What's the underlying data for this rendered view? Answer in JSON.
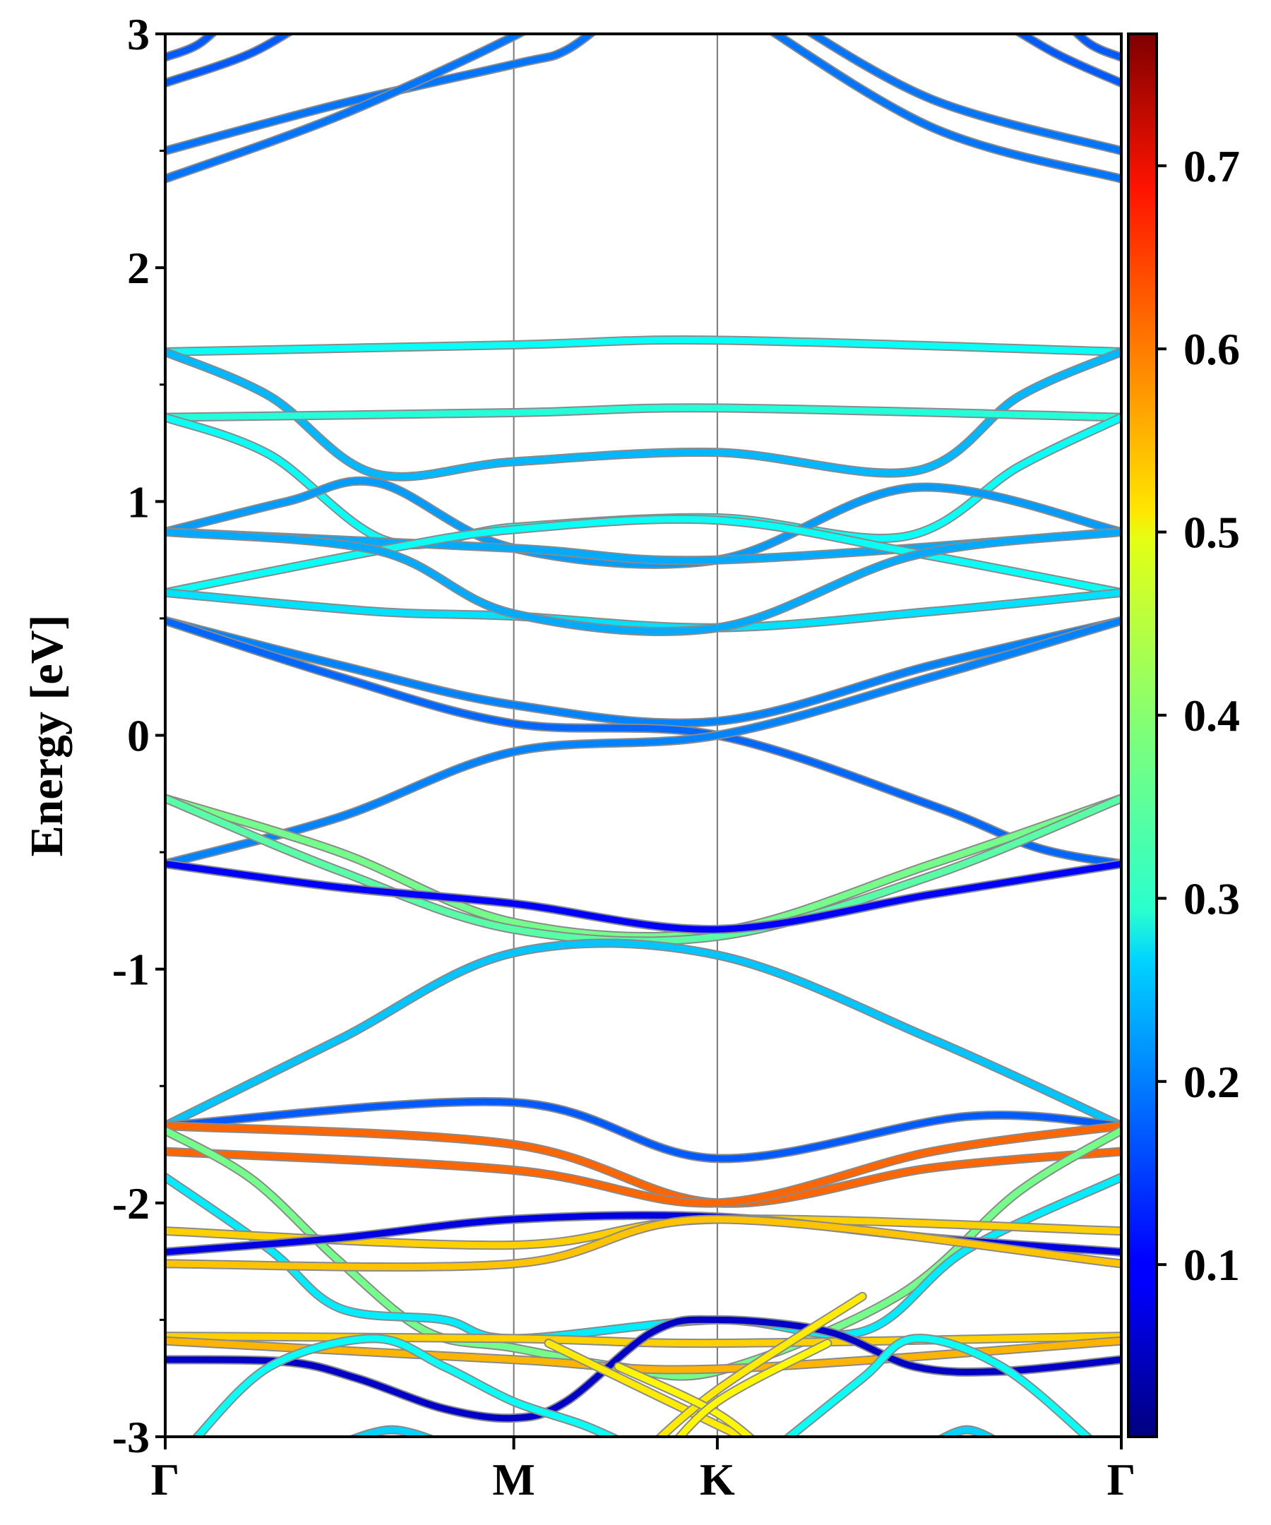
{
  "chart_data": {
    "type": "line",
    "title": "",
    "xlabel": "",
    "ylabel": "Energy [eV]",
    "ylim": [
      -3,
      3
    ],
    "yticks": [
      "3",
      "2",
      "1",
      "0",
      "-1",
      "-2",
      "-3"
    ],
    "ytick_values": [
      3,
      2,
      1,
      0,
      -1,
      -2,
      -3
    ],
    "xticks": [
      {
        "label": "Γ",
        "k": 0
      },
      {
        "label": "M",
        "k": 1
      },
      {
        "label": "K",
        "k": 1.584
      },
      {
        "label": "Γ",
        "k": 2.743
      }
    ],
    "xlim": [
      0,
      2.743
    ],
    "colorbar": {
      "range": [
        0.006,
        0.772
      ],
      "ticks": [
        "0.1",
        "0.2",
        "0.3",
        "0.4",
        "0.5",
        "0.6",
        "0.7"
      ],
      "tick_values": [
        0.1,
        0.2,
        0.3,
        0.4,
        0.5,
        0.6,
        0.7
      ],
      "colormap": "jet"
    },
    "bands": [
      {
        "w": 0.17,
        "pts": [
          [
            0,
            2.9
          ],
          [
            0.1,
            2.96
          ],
          [
            0.2,
            3.1
          ]
        ]
      },
      {
        "w": 0.17,
        "pts": [
          [
            2.55,
            3.1
          ],
          [
            2.65,
            2.96
          ],
          [
            2.743,
            2.9
          ]
        ]
      },
      {
        "w": 0.17,
        "pts": [
          [
            0,
            2.79
          ],
          [
            0.25,
            2.92
          ],
          [
            0.45,
            3.1
          ]
        ]
      },
      {
        "w": 0.17,
        "pts": [
          [
            2.35,
            3.1
          ],
          [
            2.55,
            2.92
          ],
          [
            2.743,
            2.79
          ]
        ]
      },
      {
        "w": 0.19,
        "pts": [
          [
            0,
            2.5
          ],
          [
            0.5,
            2.7
          ],
          [
            1,
            2.87
          ],
          [
            1.15,
            2.93
          ],
          [
            1.3,
            3.1
          ]
        ]
      },
      {
        "w": 0.19,
        "pts": [
          [
            1.75,
            3.1
          ],
          [
            2.2,
            2.72
          ],
          [
            2.743,
            2.5
          ]
        ]
      },
      {
        "w": 0.19,
        "pts": [
          [
            0,
            2.38
          ],
          [
            0.5,
            2.65
          ],
          [
            1,
            2.99
          ],
          [
            1.1,
            3.1
          ]
        ]
      },
      {
        "w": 0.19,
        "pts": [
          [
            1.65,
            3.1
          ],
          [
            2.2,
            2.6
          ],
          [
            2.743,
            2.38
          ]
        ]
      },
      {
        "w": 0.3,
        "pts": [
          [
            0,
            1.64
          ],
          [
            1,
            1.67
          ],
          [
            1.584,
            1.69
          ],
          [
            2.743,
            1.64
          ]
        ]
      },
      {
        "w": 0.24,
        "pts": [
          [
            0,
            1.64
          ],
          [
            0.3,
            1.45
          ],
          [
            0.6,
            1.12
          ],
          [
            1,
            1.17
          ],
          [
            1.584,
            1.21
          ],
          [
            2.15,
            1.13
          ],
          [
            2.45,
            1.45
          ],
          [
            2.743,
            1.64
          ]
        ]
      },
      {
        "w": 0.32,
        "pts": [
          [
            0,
            1.36
          ],
          [
            1,
            1.38
          ],
          [
            1.584,
            1.4
          ],
          [
            2.743,
            1.36
          ]
        ]
      },
      {
        "w": 0.3,
        "pts": [
          [
            0,
            1.36
          ],
          [
            0.3,
            1.2
          ],
          [
            0.64,
            0.83
          ],
          [
            1,
            0.89
          ],
          [
            1.584,
            0.93
          ],
          [
            2.12,
            0.85
          ],
          [
            2.45,
            1.15
          ],
          [
            2.743,
            1.36
          ]
        ]
      },
      {
        "w": 0.22,
        "pts": [
          [
            0,
            0.87
          ],
          [
            0.35,
            1.0
          ],
          [
            0.61,
            1.08
          ],
          [
            1,
            0.8
          ],
          [
            1.584,
            0.75
          ],
          [
            2.15,
            1.06
          ],
          [
            2.743,
            0.87
          ]
        ]
      },
      {
        "w": 0.23,
        "pts": [
          [
            0,
            0.87
          ],
          [
            1,
            0.8
          ],
          [
            1.584,
            0.75
          ],
          [
            2.743,
            0.87
          ]
        ]
      },
      {
        "w": 0.3,
        "pts": [
          [
            0,
            0.61
          ],
          [
            0.61,
            0.79
          ],
          [
            1,
            0.88
          ],
          [
            1.584,
            0.92
          ],
          [
            2.15,
            0.78
          ],
          [
            2.743,
            0.61
          ]
        ]
      },
      {
        "w": 0.27,
        "pts": [
          [
            0,
            0.61
          ],
          [
            0.6,
            0.53
          ],
          [
            1,
            0.51
          ],
          [
            1.584,
            0.46
          ],
          [
            2.2,
            0.53
          ],
          [
            2.743,
            0.61
          ]
        ]
      },
      {
        "w": 0.23,
        "pts": [
          [
            0,
            0.87
          ],
          [
            0.61,
            0.79
          ],
          [
            1,
            0.52
          ],
          [
            1.584,
            0.46
          ],
          [
            2.15,
            0.77
          ],
          [
            2.743,
            0.87
          ]
        ]
      },
      {
        "w": 0.2,
        "pts": [
          [
            0,
            0.49
          ],
          [
            0.5,
            0.3
          ],
          [
            1,
            0.13
          ],
          [
            1.584,
            0.06
          ],
          [
            2.2,
            0.3
          ],
          [
            2.743,
            0.49
          ]
        ]
      },
      {
        "w": 0.18,
        "pts": [
          [
            0,
            0.49
          ],
          [
            0.5,
            0.25
          ],
          [
            1,
            0.05
          ],
          [
            1.584,
            0.0
          ],
          [
            2.2,
            -0.3
          ],
          [
            2.5,
            -0.48
          ],
          [
            2.743,
            -0.55
          ]
        ]
      },
      {
        "w": 0.2,
        "pts": [
          [
            0,
            -0.55
          ],
          [
            0.5,
            -0.35
          ],
          [
            1,
            -0.07
          ],
          [
            1.584,
            0.0
          ],
          [
            2.2,
            0.25
          ],
          [
            2.743,
            0.49
          ]
        ]
      },
      {
        "w": 0.38,
        "pts": [
          [
            0,
            -0.27
          ],
          [
            0.5,
            -0.5
          ],
          [
            1,
            -0.8
          ],
          [
            1.584,
            -0.84
          ],
          [
            2.2,
            -0.55
          ],
          [
            2.743,
            -0.27
          ]
        ]
      },
      {
        "w": 0.36,
        "pts": [
          [
            0,
            -0.27
          ],
          [
            0.5,
            -0.58
          ],
          [
            1,
            -0.83
          ],
          [
            1.584,
            -0.86
          ],
          [
            2.2,
            -0.6
          ],
          [
            2.743,
            -0.27
          ]
        ]
      },
      {
        "w": 0.1,
        "pts": [
          [
            0,
            -0.55
          ],
          [
            0.5,
            -0.65
          ],
          [
            1,
            -0.72
          ],
          [
            1.584,
            -0.83
          ],
          [
            2.2,
            -0.68
          ],
          [
            2.743,
            -0.55
          ]
        ]
      },
      {
        "w": 0.25,
        "pts": [
          [
            0,
            -1.67
          ],
          [
            0.5,
            -1.3
          ],
          [
            1,
            -0.93
          ],
          [
            1.584,
            -0.94
          ],
          [
            2.2,
            -1.3
          ],
          [
            2.743,
            -1.67
          ]
        ]
      },
      {
        "w": 0.17,
        "pts": [
          [
            0,
            -1.67
          ],
          [
            1,
            -1.57
          ],
          [
            1.584,
            -1.81
          ],
          [
            2.3,
            -1.63
          ],
          [
            2.743,
            -1.67
          ]
        ]
      },
      {
        "w": 0.6,
        "pts": [
          [
            0,
            -1.67
          ],
          [
            1,
            -1.75
          ],
          [
            1.584,
            -2.0
          ],
          [
            2.2,
            -1.85
          ],
          [
            2.743,
            -1.78
          ]
        ]
      },
      {
        "w": 0.6,
        "pts": [
          [
            0,
            -1.78
          ],
          [
            1,
            -1.86
          ],
          [
            1.584,
            -2.0
          ],
          [
            2.2,
            -1.78
          ],
          [
            2.743,
            -1.67
          ]
        ]
      },
      {
        "w": 0.38,
        "pts": [
          [
            0,
            -1.69
          ],
          [
            0.25,
            -1.9
          ],
          [
            0.5,
            -2.25
          ],
          [
            0.75,
            -2.55
          ],
          [
            1,
            -2.62
          ],
          [
            1.3,
            -2.7
          ],
          [
            1.584,
            -2.72
          ],
          [
            2.1,
            -2.4
          ],
          [
            2.45,
            -1.95
          ],
          [
            2.743,
            -1.69
          ]
        ]
      },
      {
        "w": 0.28,
        "pts": [
          [
            0,
            -1.89
          ],
          [
            0.3,
            -2.2
          ],
          [
            0.5,
            -2.45
          ],
          [
            0.8,
            -2.5
          ],
          [
            1,
            -2.58
          ],
          [
            1.584,
            -2.5
          ],
          [
            2.0,
            -2.55
          ],
          [
            2.3,
            -2.2
          ],
          [
            2.743,
            -1.89
          ]
        ]
      },
      {
        "w": 0.52,
        "pts": [
          [
            0,
            -2.12
          ],
          [
            1,
            -2.18
          ],
          [
            1.584,
            -2.07
          ],
          [
            2.743,
            -2.12
          ]
        ]
      },
      {
        "w": 0.08,
        "pts": [
          [
            0,
            -2.21
          ],
          [
            0.5,
            -2.15
          ],
          [
            1,
            -2.07
          ],
          [
            1.584,
            -2.06
          ],
          [
            2.2,
            -2.15
          ],
          [
            2.743,
            -2.21
          ]
        ]
      },
      {
        "w": 0.53,
        "pts": [
          [
            0,
            -2.26
          ],
          [
            1,
            -2.26
          ],
          [
            1.584,
            -2.07
          ],
          [
            2.743,
            -2.26
          ]
        ]
      },
      {
        "w": 0.52,
        "pts": [
          [
            0,
            -2.57
          ],
          [
            1,
            -2.58
          ],
          [
            1.584,
            -2.6
          ],
          [
            2.743,
            -2.57
          ]
        ]
      },
      {
        "w": 0.54,
        "pts": [
          [
            0,
            -2.59
          ],
          [
            1,
            -2.67
          ],
          [
            1.584,
            -2.71
          ],
          [
            2.743,
            -2.59
          ]
        ]
      },
      {
        "w": 0.06,
        "pts": [
          [
            0,
            -2.67
          ],
          [
            0.35,
            -2.68
          ],
          [
            0.55,
            -2.75
          ],
          [
            0.8,
            -2.88
          ],
          [
            1,
            -2.92
          ],
          [
            1.15,
            -2.85
          ],
          [
            1.4,
            -2.55
          ],
          [
            1.584,
            -2.5
          ],
          [
            1.9,
            -2.55
          ],
          [
            2.15,
            -2.7
          ],
          [
            2.4,
            -2.72
          ],
          [
            2.743,
            -2.67
          ]
        ]
      },
      {
        "w": 0.3,
        "pts": [
          [
            0.08,
            -3.02
          ],
          [
            0.3,
            -2.7
          ],
          [
            0.6,
            -2.58
          ],
          [
            0.8,
            -2.7
          ],
          [
            1,
            -2.85
          ],
          [
            1.2,
            -2.95
          ],
          [
            1.35,
            -3.05
          ]
        ]
      },
      {
        "w": 0.3,
        "pts": [
          [
            1.75,
            -3.05
          ],
          [
            2.0,
            -2.75
          ],
          [
            2.15,
            -2.58
          ],
          [
            2.4,
            -2.7
          ],
          [
            2.66,
            -3.02
          ]
        ]
      },
      {
        "w": 0.5,
        "pts": [
          [
            1.1,
            -2.6
          ],
          [
            1.584,
            -2.95
          ],
          [
            1.8,
            -3.1
          ]
        ]
      },
      {
        "w": 0.5,
        "pts": [
          [
            1.35,
            -3.1
          ],
          [
            1.584,
            -2.8
          ],
          [
            2.0,
            -2.4
          ]
        ]
      },
      {
        "w": 0.49,
        "pts": [
          [
            1.3,
            -2.7
          ],
          [
            1.584,
            -2.9
          ],
          [
            1.75,
            -3.1
          ]
        ]
      },
      {
        "w": 0.49,
        "pts": [
          [
            1.42,
            -3.1
          ],
          [
            1.584,
            -2.85
          ],
          [
            1.9,
            -2.6
          ]
        ]
      },
      {
        "w": 0.26,
        "pts": [
          [
            0.5,
            -3.03
          ],
          [
            0.65,
            -2.97
          ],
          [
            0.8,
            -3.03
          ]
        ]
      },
      {
        "w": 0.26,
        "pts": [
          [
            2.2,
            -3.03
          ],
          [
            2.3,
            -2.97
          ],
          [
            2.4,
            -3.03
          ]
        ]
      }
    ]
  }
}
